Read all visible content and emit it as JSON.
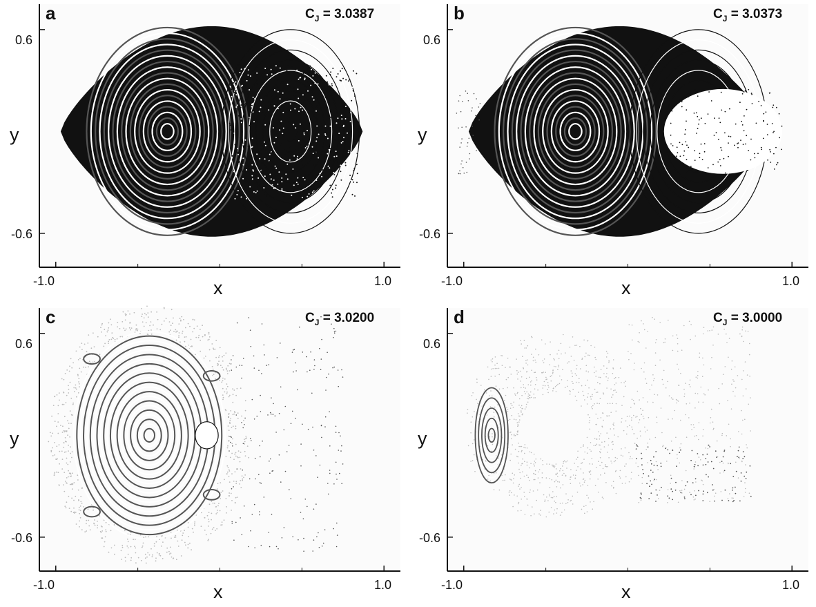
{
  "chart_data": [
    {
      "type": "scatter",
      "panel": "a",
      "annotation_prefix": "C",
      "annotation_subscript": "J",
      "annotation_value": " = 3.0387",
      "xlabel": "x",
      "ylabel": "y",
      "xlim": [
        -1.1,
        1.1
      ],
      "ylim": [
        -0.8,
        0.75
      ],
      "xticks": [
        {
          "v": -1.0,
          "t": "-1.0"
        },
        {
          "v": 1.0,
          "t": "1.0"
        }
      ],
      "yticks": [
        {
          "v": 0.6,
          "t": "0.6"
        },
        {
          "v": -0.6,
          "t": "-0.6"
        }
      ],
      "minor_xticks": [
        -0.5,
        0.0,
        0.5
      ],
      "description_structures": [
        {
          "kind": "boundary",
          "shape": "lens",
          "x_range": [
            -0.97,
            0.87
          ],
          "y_max": 0.62
        },
        {
          "kind": "islands",
          "center": [
            -0.32,
            0.0
          ],
          "rx_max": 0.5,
          "ry_max": 0.6
        },
        {
          "kind": "chaotic_region",
          "x_range": [
            0.05,
            0.85
          ],
          "y_range": [
            -0.4,
            0.4
          ]
        }
      ]
    },
    {
      "type": "scatter",
      "panel": "b",
      "annotation_prefix": "C",
      "annotation_subscript": "J",
      "annotation_value": " = 3.0373",
      "xlabel": "x",
      "ylabel": "y",
      "xlim": [
        -1.1,
        1.1
      ],
      "ylim": [
        -0.8,
        0.75
      ],
      "xticks": [
        {
          "v": -1.0,
          "t": "-1.0"
        },
        {
          "v": 1.0,
          "t": "1.0"
        }
      ],
      "yticks": [
        {
          "v": 0.6,
          "t": "0.6"
        },
        {
          "v": -0.6,
          "t": "-0.6"
        }
      ],
      "minor_xticks": [
        -0.5,
        0.0,
        0.5
      ]
    },
    {
      "type": "scatter",
      "panel": "c",
      "annotation_prefix": "C",
      "annotation_subscript": "J",
      "annotation_value": " = 3.0200",
      "xlabel": "x",
      "ylabel": "y",
      "xlim": [
        -1.1,
        1.1
      ],
      "ylim": [
        -0.8,
        0.75
      ],
      "xticks": [
        {
          "v": -1.0,
          "t": "-1.0"
        },
        {
          "v": 1.0,
          "t": "1.0"
        }
      ],
      "yticks": [
        {
          "v": 0.6,
          "t": "0.6"
        },
        {
          "v": -0.6,
          "t": "-0.6"
        }
      ],
      "minor_xticks": [
        -0.5,
        0.0,
        0.5
      ]
    },
    {
      "type": "scatter",
      "panel": "d",
      "annotation_prefix": "C",
      "annotation_subscript": "J",
      "annotation_value": " = 3.0000",
      "xlabel": "x",
      "ylabel": "y",
      "xlim": [
        -1.1,
        1.1
      ],
      "ylim": [
        -0.8,
        0.75
      ],
      "xticks": [
        {
          "v": -1.0,
          "t": "-1.0"
        },
        {
          "v": 1.0,
          "t": "1.0"
        }
      ],
      "yticks": [
        {
          "v": 0.6,
          "t": "0.6"
        },
        {
          "v": -0.6,
          "t": "-0.6"
        }
      ],
      "minor_xticks": [
        -0.5,
        0.0,
        0.5
      ]
    }
  ],
  "colors": {
    "axis": "#111111",
    "dark_points": "#111111",
    "mid_points": "#555555",
    "light_points": "#bbbbbb",
    "plot_background": "#fbfbfb"
  }
}
